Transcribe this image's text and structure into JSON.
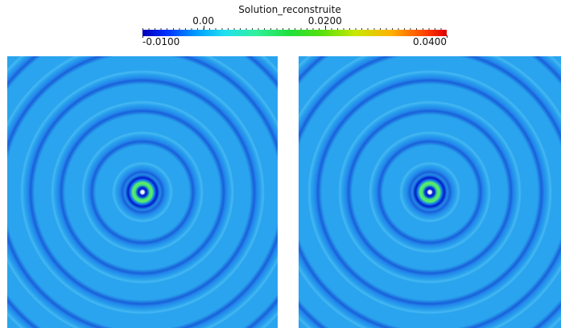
{
  "colorbar": {
    "title": "Solution_reconstruite",
    "lim": [
      {
        "value": -0.01,
        "label": "-0.0100"
      },
      {
        "value": 0.04,
        "label": "0.0400"
      }
    ],
    "ticks": [
      {
        "value": 0,
        "label": "0.00"
      },
      {
        "value": 0.02,
        "label": "0.0200"
      }
    ]
  }
}
